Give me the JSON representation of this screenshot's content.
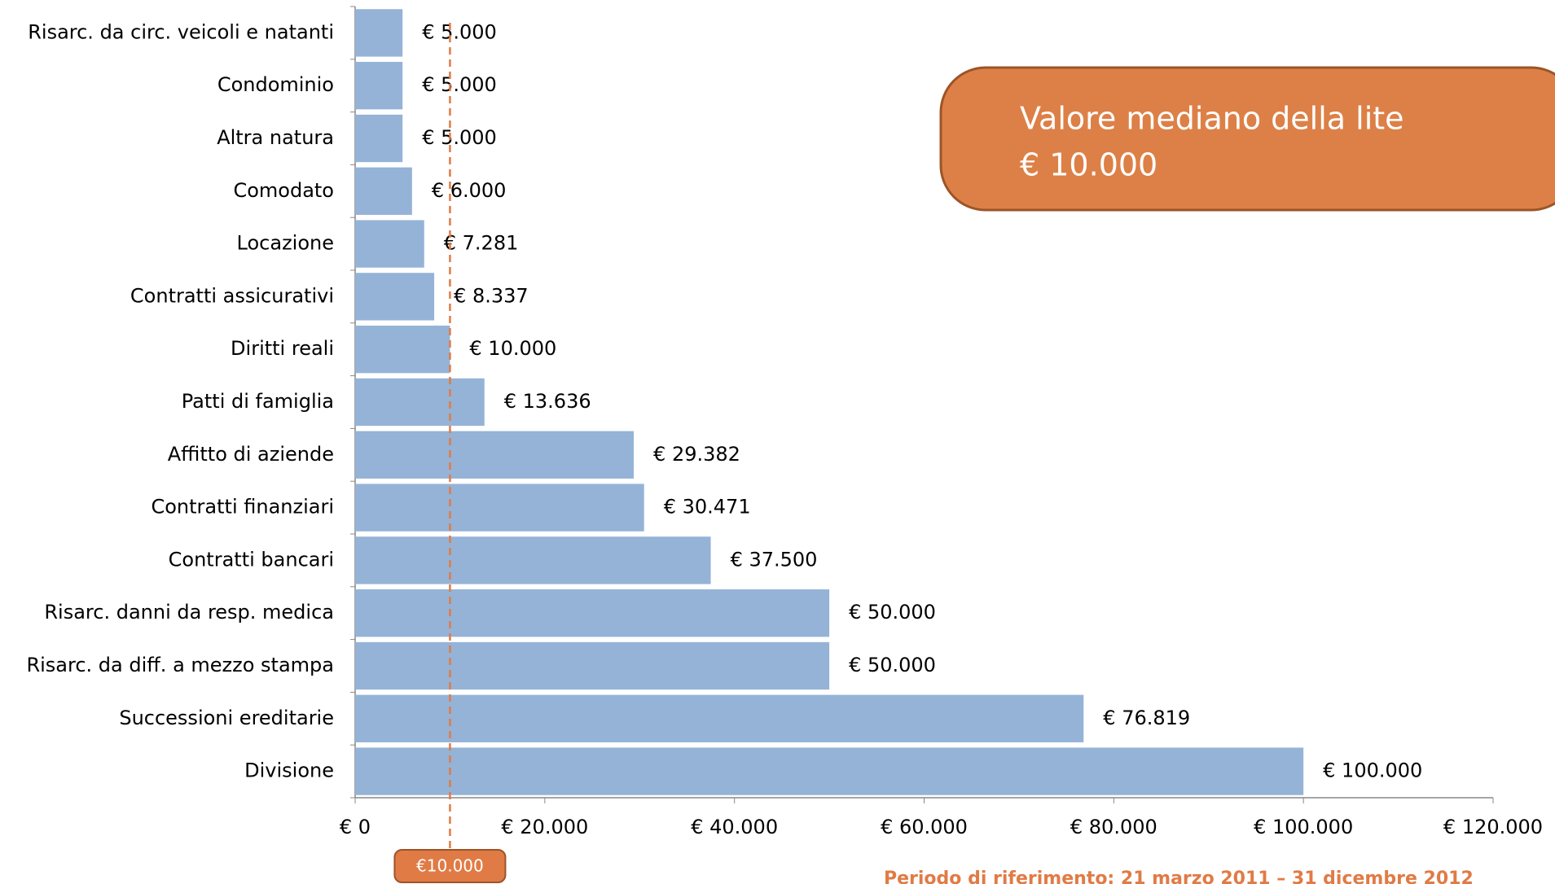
{
  "chart_data": {
    "type": "bar",
    "orientation": "horizontal",
    "categories": [
      "Risarc. da circ. veicoli e natanti",
      "Condominio",
      "Altra natura",
      "Comodato",
      "Locazione",
      "Contratti assicurativi",
      "Diritti reali",
      "Patti di famiglia",
      "Affitto di aziende",
      "Contratti finanziari",
      "Contratti bancari",
      "Risarc. danni da resp. medica",
      "Risarc. da diff. a mezzo stampa",
      "Successioni ereditarie",
      "Divisione"
    ],
    "values": [
      5000,
      5000,
      5000,
      6000,
      7281,
      8337,
      10000,
      13636,
      29382,
      30471,
      37500,
      50000,
      50000,
      76819,
      100000
    ],
    "value_labels": [
      "€ 5.000",
      "€ 5.000",
      "€ 5.000",
      "€ 6.000",
      "€ 7.281",
      "€ 8.337",
      "€ 10.000",
      "€ 13.636",
      "€ 29.382",
      "€ 30.471",
      "€ 37.500",
      "€ 50.000",
      "€ 50.000",
      "€ 76.819",
      "€ 100.000"
    ],
    "color": "#95b3d7",
    "xlim": [
      0,
      120000
    ],
    "xticks": [
      {
        "value": 0,
        "label": "€ 0"
      },
      {
        "value": 20000,
        "label": "€ 20.000"
      },
      {
        "value": 40000,
        "label": "€ 40.000"
      },
      {
        "value": 60000,
        "label": "€ 60.000"
      },
      {
        "value": 80000,
        "label": "€ 80.000"
      },
      {
        "value": 100000,
        "label": "€ 100.000"
      },
      {
        "value": 120000,
        "label": "€ 120.000"
      }
    ],
    "median": {
      "value": 10000,
      "label": "€10.000",
      "color": "#e07b45"
    },
    "callout": [
      "Valore mediano della lite",
      "€ 10.000"
    ],
    "footnote": "Periodo di riferimento: 21 marzo 2011 – 31 dicembre 2012"
  }
}
